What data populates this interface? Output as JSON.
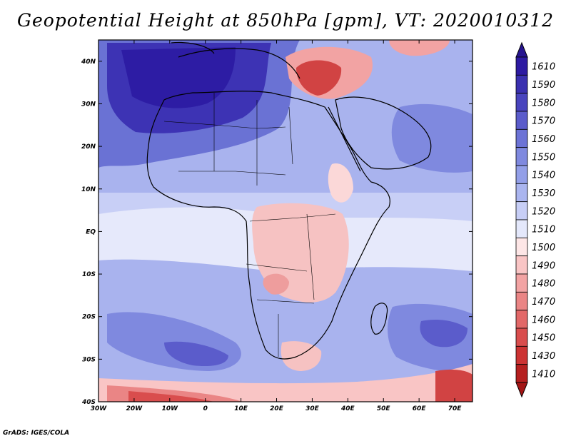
{
  "title": "Geopotential Height at 850hPa [gpm], VT: 2020010312",
  "credit": "GrADS: IGES/COLA",
  "map": {
    "lon_range": [
      -30,
      75
    ],
    "lat_range": [
      -40,
      45
    ],
    "lon_ticks": [
      {
        "value": -30,
        "label": "30W"
      },
      {
        "value": -20,
        "label": "20W"
      },
      {
        "value": -10,
        "label": "10W"
      },
      {
        "value": 0,
        "label": "0"
      },
      {
        "value": 10,
        "label": "10E"
      },
      {
        "value": 20,
        "label": "20E"
      },
      {
        "value": 30,
        "label": "30E"
      },
      {
        "value": 40,
        "label": "40E"
      },
      {
        "value": 50,
        "label": "50E"
      },
      {
        "value": 60,
        "label": "60E"
      },
      {
        "value": 70,
        "label": "70E"
      }
    ],
    "lat_ticks": [
      {
        "value": 40,
        "label": "40N"
      },
      {
        "value": 30,
        "label": "30N"
      },
      {
        "value": 20,
        "label": "20N"
      },
      {
        "value": 10,
        "label": "10N"
      },
      {
        "value": 0,
        "label": "EQ"
      },
      {
        "value": -10,
        "label": "10S"
      },
      {
        "value": -20,
        "label": "20S"
      },
      {
        "value": -30,
        "label": "30S"
      },
      {
        "value": -40,
        "label": "40S"
      }
    ]
  },
  "colorbar": {
    "levels": [
      {
        "label": "1610",
        "color": "#2d1aa2"
      },
      {
        "label": "1590",
        "color": "#3a30b0"
      },
      {
        "label": "1580",
        "color": "#4944be"
      },
      {
        "label": "1570",
        "color": "#5b5ccb"
      },
      {
        "label": "1560",
        "color": "#6c73d6"
      },
      {
        "label": "1550",
        "color": "#7f89df"
      },
      {
        "label": "1540",
        "color": "#939fe8"
      },
      {
        "label": "1530",
        "color": "#aab5ef"
      },
      {
        "label": "1520",
        "color": "#c7cef6"
      },
      {
        "label": "1510",
        "color": "#e4e8fb"
      },
      {
        "label": "1500",
        "color": "#fde6e6"
      },
      {
        "label": "1490",
        "color": "#f9c5c5"
      },
      {
        "label": "1480",
        "color": "#f2a3a3"
      },
      {
        "label": "1470",
        "color": "#ea8585"
      },
      {
        "label": "1460",
        "color": "#e26868"
      },
      {
        "label": "1450",
        "color": "#d94d4d"
      },
      {
        "label": "1430",
        "color": "#cc3333"
      },
      {
        "label": "1410",
        "color": "#b51f1f"
      }
    ],
    "cap_top_color": "#26148f",
    "cap_bottom_color": "#a31515"
  }
}
